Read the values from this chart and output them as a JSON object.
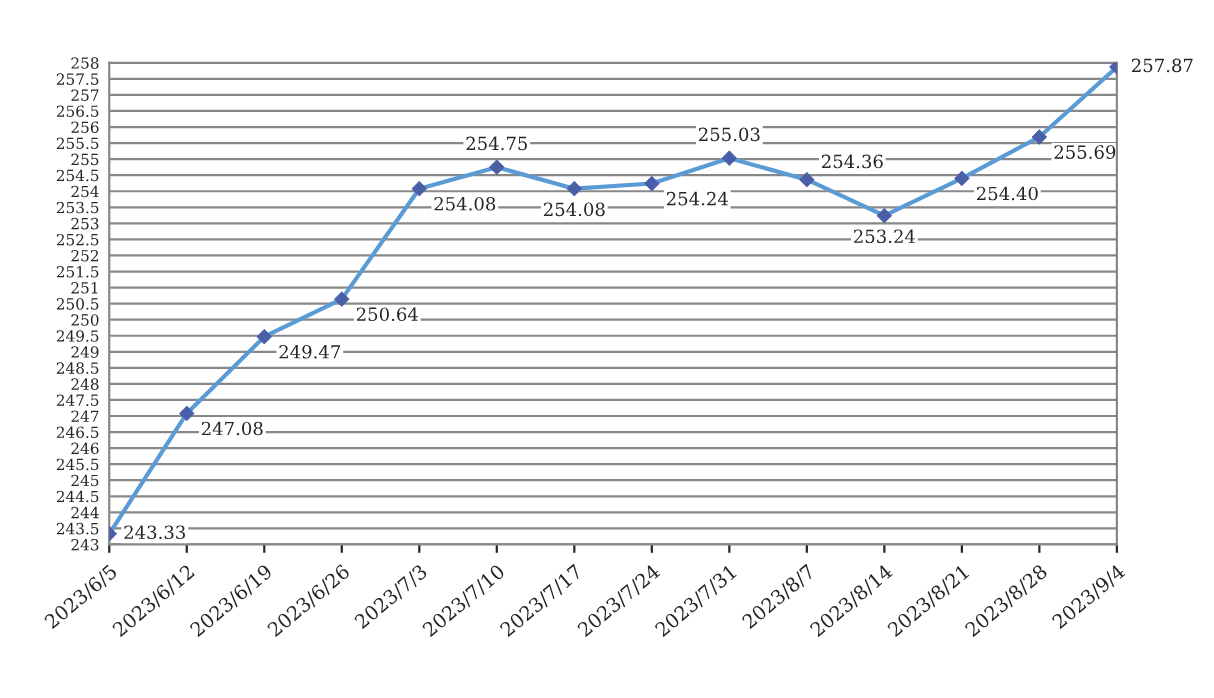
{
  "chart_data": {
    "type": "line",
    "categories": [
      "2023/6/5",
      "2023/6/12",
      "2023/6/19",
      "2023/6/26",
      "2023/7/3",
      "2023/7/10",
      "2023/7/17",
      "2023/7/24",
      "2023/7/31",
      "2023/8/7",
      "2023/8/14",
      "2023/8/21",
      "2023/8/28",
      "2023/9/4"
    ],
    "series": [
      {
        "color": "#5b9bd5",
        "values": [
          243.33,
          247.08,
          249.47,
          250.64,
          254.08,
          254.75,
          254.08,
          254.24,
          255.03,
          254.36,
          253.24,
          254.4,
          255.69,
          257.87
        ],
        "value_labels": [
          "243.33",
          "247.08",
          "249.47",
          "250.64",
          "254.08",
          "254.75",
          "254.08",
          "254.24",
          "255.03",
          "254.36",
          "253.24",
          "254.40",
          "255.69",
          "257.87"
        ]
      }
    ],
    "ylim": [
      243,
      258
    ],
    "yticks": [
      243,
      243.5,
      244,
      244.5,
      245,
      245.5,
      246,
      246.5,
      247,
      247.5,
      248,
      248.5,
      249,
      249.5,
      250,
      250.5,
      251,
      251.5,
      252,
      252.5,
      253,
      253.5,
      254,
      254.5,
      255,
      255.5,
      256,
      256.5,
      257,
      257.5,
      258
    ],
    "grid": "y",
    "marker": "diamond",
    "line_style": "solid",
    "legend": false
  }
}
